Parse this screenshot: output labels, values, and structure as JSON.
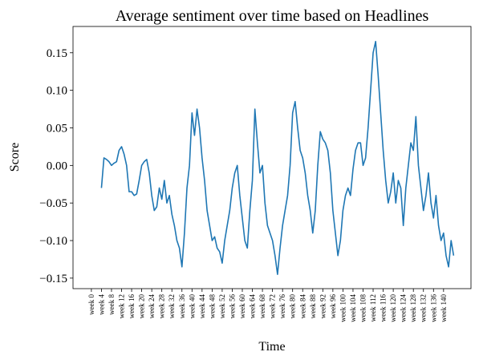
{
  "chart_data": {
    "type": "line",
    "title": "Average sentiment over time based on Headlines",
    "x_label": "Time",
    "y_label": "Score",
    "x": [
      4,
      5,
      6,
      7,
      8,
      9,
      10,
      11,
      12,
      13,
      14,
      15,
      16,
      17,
      18,
      19,
      20,
      21,
      22,
      23,
      24,
      25,
      26,
      27,
      28,
      29,
      30,
      31,
      32,
      33,
      34,
      35,
      36,
      37,
      38,
      39,
      40,
      41,
      42,
      43,
      44,
      45,
      46,
      47,
      48,
      49,
      50,
      51,
      52,
      53,
      54,
      55,
      56,
      57,
      58,
      59,
      60,
      61,
      62,
      63,
      64,
      65,
      66,
      67,
      68,
      69,
      70,
      71,
      72,
      73,
      74,
      75,
      76,
      77,
      78,
      79,
      80,
      81,
      82,
      83,
      84,
      85,
      86,
      87,
      88,
      89,
      90,
      91,
      92,
      93,
      94,
      95,
      96,
      97,
      98,
      99,
      100,
      101,
      102,
      103,
      104,
      105,
      106,
      107,
      108,
      109,
      110,
      111,
      112,
      113,
      114,
      115,
      116,
      117,
      118,
      119,
      120,
      121,
      122,
      123,
      124,
      125,
      126,
      127,
      128,
      129,
      130,
      131,
      132,
      133,
      134,
      135,
      136,
      137,
      138,
      139,
      140,
      141,
      142,
      143,
      144
    ],
    "series": [
      {
        "name": "Score",
        "color": "#1f77b4",
        "values": [
          -0.03,
          0.01,
          0.008,
          0.005,
          0.0,
          0.003,
          0.005,
          0.02,
          0.025,
          0.015,
          0.0,
          -0.035,
          -0.035,
          -0.04,
          -0.038,
          -0.02,
          0.0,
          0.005,
          0.008,
          -0.01,
          -0.04,
          -0.06,
          -0.055,
          -0.03,
          -0.045,
          -0.02,
          -0.05,
          -0.04,
          -0.065,
          -0.08,
          -0.1,
          -0.11,
          -0.135,
          -0.09,
          -0.03,
          0.0,
          0.07,
          0.04,
          0.075,
          0.05,
          0.01,
          -0.02,
          -0.06,
          -0.08,
          -0.1,
          -0.095,
          -0.11,
          -0.115,
          -0.13,
          -0.1,
          -0.08,
          -0.06,
          -0.03,
          -0.01,
          0.0,
          -0.04,
          -0.07,
          -0.1,
          -0.11,
          -0.06,
          -0.02,
          0.075,
          0.03,
          -0.01,
          0.0,
          -0.05,
          -0.08,
          -0.09,
          -0.1,
          -0.12,
          -0.145,
          -0.11,
          -0.08,
          -0.06,
          -0.04,
          0.0,
          0.07,
          0.085,
          0.05,
          0.02,
          0.01,
          -0.01,
          -0.04,
          -0.06,
          -0.09,
          -0.06,
          0.0,
          0.045,
          0.035,
          0.03,
          0.02,
          -0.01,
          -0.06,
          -0.09,
          -0.12,
          -0.1,
          -0.06,
          -0.04,
          -0.03,
          -0.04,
          -0.005,
          0.02,
          0.03,
          0.03,
          0.0,
          0.01,
          0.05,
          0.1,
          0.15,
          0.165,
          0.12,
          0.07,
          0.02,
          -0.02,
          -0.05,
          -0.035,
          -0.01,
          -0.05,
          -0.02,
          -0.03,
          -0.08,
          -0.03,
          0.0,
          0.03,
          0.02,
          0.065,
          0.0,
          -0.03,
          -0.06,
          -0.04,
          -0.01,
          -0.05,
          -0.07,
          -0.04,
          -0.08,
          -0.1,
          -0.09,
          -0.12,
          -0.135,
          -0.1,
          -0.12
        ]
      }
    ],
    "xlim": [
      -7.3,
      150.9
    ],
    "xticks": [
      {
        "value": 0,
        "label": "week 0"
      },
      {
        "value": 4,
        "label": "week 4"
      },
      {
        "value": 8,
        "label": "week 8"
      },
      {
        "value": 12,
        "label": "week 12"
      },
      {
        "value": 16,
        "label": "week 16"
      },
      {
        "value": 20,
        "label": "week 20"
      },
      {
        "value": 24,
        "label": "week 24"
      },
      {
        "value": 28,
        "label": "week 28"
      },
      {
        "value": 32,
        "label": "week 32"
      },
      {
        "value": 36,
        "label": "week 36"
      },
      {
        "value": 40,
        "label": "week 40"
      },
      {
        "value": 44,
        "label": "week 44"
      },
      {
        "value": 48,
        "label": "week 48"
      },
      {
        "value": 52,
        "label": "week 52"
      },
      {
        "value": 56,
        "label": "week 56"
      },
      {
        "value": 60,
        "label": "week 60"
      },
      {
        "value": 64,
        "label": "week 64"
      },
      {
        "value": 68,
        "label": "week 68"
      },
      {
        "value": 72,
        "label": "week 72"
      },
      {
        "value": 76,
        "label": "week 76"
      },
      {
        "value": 80,
        "label": "week 80"
      },
      {
        "value": 84,
        "label": "week 84"
      },
      {
        "value": 88,
        "label": "week 88"
      },
      {
        "value": 92,
        "label": "week 92"
      },
      {
        "value": 96,
        "label": "week 96"
      },
      {
        "value": 100,
        "label": "week 100"
      },
      {
        "value": 104,
        "label": "week 104"
      },
      {
        "value": 108,
        "label": "week 108"
      },
      {
        "value": 112,
        "label": "week 112"
      },
      {
        "value": 116,
        "label": "week 116"
      },
      {
        "value": 120,
        "label": "week 120"
      },
      {
        "value": 124,
        "label": "week 124"
      },
      {
        "value": 128,
        "label": "week 128"
      },
      {
        "value": 132,
        "label": "week 132"
      },
      {
        "value": 136,
        "label": "week 136"
      },
      {
        "value": 140,
        "label": "week 140"
      }
    ],
    "ylim": [
      -0.164,
      0.185
    ],
    "yticks": [
      {
        "value": -0.15,
        "label": "−0.15"
      },
      {
        "value": -0.1,
        "label": "−0.10"
      },
      {
        "value": -0.05,
        "label": "−0.05"
      },
      {
        "value": 0,
        "label": "0.00"
      },
      {
        "value": 0.05,
        "label": "0.05"
      },
      {
        "value": 0.1,
        "label": "0.10"
      },
      {
        "value": 0.15,
        "label": "0.15"
      }
    ],
    "grid": false
  }
}
